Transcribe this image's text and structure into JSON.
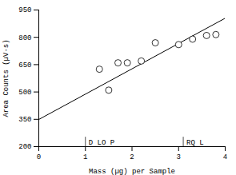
{
  "chart_data": {
    "type": "scatter",
    "xlabel": "Mass (µg) per Sample",
    "ylabel": "Area Counts (µV·s)",
    "xlim": [
      0,
      4
    ],
    "ylim": [
      200,
      950
    ],
    "xticks": [
      0,
      1,
      2,
      3,
      4
    ],
    "yticks": [
      200,
      350,
      500,
      650,
      800,
      950
    ],
    "grid": false,
    "series": [
      {
        "type": "scatter",
        "marker": "circle",
        "color": "white",
        "edge_color": "black",
        "x": [
          1.3,
          1.5,
          1.7,
          1.9,
          2.2,
          2.5,
          3.0,
          3.3,
          3.6,
          3.8
        ],
        "values": [
          625,
          510,
          660,
          660,
          670,
          770,
          760,
          790,
          810,
          815
        ]
      },
      {
        "type": "line",
        "color": "black",
        "x": [
          0.0,
          4.0
        ],
        "values": [
          349,
          905
        ]
      }
    ],
    "annotations": [
      {
        "text": "D LO P",
        "x": 1.0,
        "y": 222
      },
      {
        "text": "RQ L",
        "x": 3.1,
        "y": 222
      }
    ]
  }
}
